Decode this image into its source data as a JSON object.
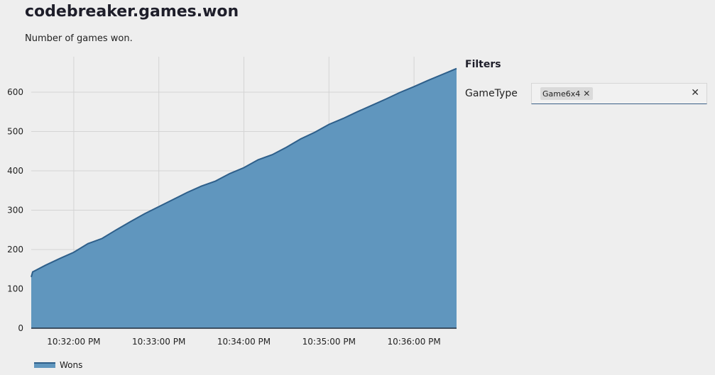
{
  "header": {
    "title": "codebreaker.games.won",
    "description": "Number of games won."
  },
  "filters": {
    "heading": "Filters",
    "field_label": "GameType",
    "chips": [
      {
        "label": "Game6x4",
        "remove_icon": "close-icon"
      }
    ],
    "clear_icon": "close-icon"
  },
  "colors": {
    "area_fill": "#6096be",
    "area_line": "#2e5f8a",
    "grid": "#d4d4d4"
  },
  "chart_data": {
    "type": "area",
    "title": "",
    "xlabel": "",
    "ylabel": "",
    "legend": {
      "placement": "bottom-left",
      "entries": [
        "Wons"
      ]
    },
    "grid": true,
    "yticks": [
      0,
      100,
      200,
      300,
      400,
      500,
      600
    ],
    "xticks": [
      "10:32:00 PM",
      "10:33:00 PM",
      "10:34:00 PM",
      "10:35:00 PM",
      "10:36:00 PM"
    ],
    "xlim": [
      "10:31:30 PM",
      "10:36:30 PM"
    ],
    "ylim": [
      0,
      690
    ],
    "series": [
      {
        "name": "Wons",
        "x": [
          "10:31:30 PM",
          "10:31:31 PM",
          "10:31:40 PM",
          "10:31:50 PM",
          "10:32:00 PM",
          "10:32:10 PM",
          "10:32:20 PM",
          "10:32:30 PM",
          "10:32:40 PM",
          "10:32:50 PM",
          "10:33:00 PM",
          "10:33:10 PM",
          "10:33:20 PM",
          "10:33:30 PM",
          "10:33:40 PM",
          "10:33:50 PM",
          "10:34:00 PM",
          "10:34:10 PM",
          "10:34:20 PM",
          "10:34:30 PM",
          "10:34:40 PM",
          "10:34:50 PM",
          "10:35:00 PM",
          "10:35:10 PM",
          "10:35:20 PM",
          "10:35:30 PM",
          "10:35:40 PM",
          "10:35:50 PM",
          "10:36:00 PM",
          "10:36:10 PM",
          "10:36:20 PM",
          "10:36:30 PM"
        ],
        "values": [
          130,
          143,
          160,
          177,
          193,
          215,
          228,
          250,
          271,
          291,
          309,
          327,
          345,
          361,
          374,
          393,
          408,
          428,
          441,
          460,
          481,
          498,
          518,
          533,
          550,
          566,
          582,
          599,
          614,
          630,
          645,
          660
        ]
      }
    ]
  }
}
